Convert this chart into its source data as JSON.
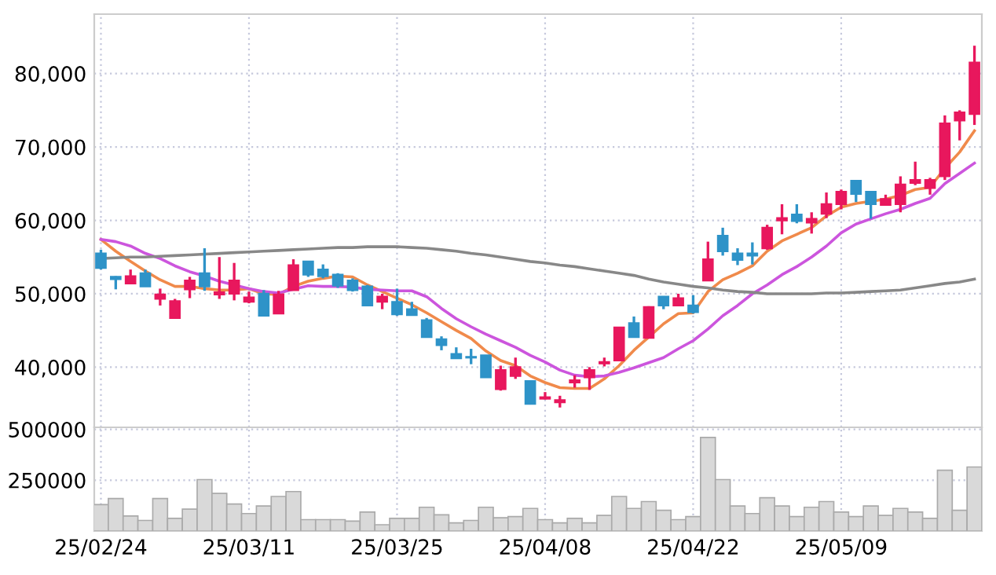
{
  "chart_data": [
    {
      "type": "candlestick",
      "categories": [
        null,
        null,
        null,
        null,
        null,
        null,
        null,
        null,
        null,
        null,
        null,
        null,
        null,
        null,
        null,
        null,
        null,
        null,
        null,
        null,
        null,
        null,
        null,
        null,
        null,
        null,
        null,
        null,
        null,
        null,
        null,
        null,
        null,
        null,
        null,
        null,
        null,
        null,
        null,
        null,
        null,
        null,
        null,
        null,
        null,
        null,
        null,
        null,
        null,
        null,
        null,
        null,
        null,
        null,
        null,
        null,
        null,
        null,
        null,
        null
      ],
      "ohlc": [
        [
          55500,
          56000,
          53300,
          53500
        ],
        [
          52300,
          52400,
          50600,
          52000
        ],
        [
          51400,
          53300,
          51400,
          52400
        ],
        [
          52800,
          53300,
          51000,
          51000
        ],
        [
          49300,
          50700,
          48400,
          49900
        ],
        [
          46700,
          49300,
          46700,
          49000
        ],
        [
          50600,
          52300,
          49400,
          51800
        ],
        [
          52800,
          56200,
          50400,
          51000
        ],
        [
          49900,
          55000,
          49300,
          50200
        ],
        [
          50000,
          54200,
          49100,
          51800
        ],
        [
          48900,
          50300,
          48700,
          49500
        ],
        [
          50000,
          50500,
          47000,
          47000
        ],
        [
          47300,
          50400,
          47300,
          49900
        ],
        [
          50500,
          54700,
          50500,
          53900
        ],
        [
          54400,
          54400,
          52300,
          52600
        ],
        [
          53300,
          54000,
          52100,
          52400
        ],
        [
          52600,
          52800,
          50800,
          51100
        ],
        [
          51800,
          52100,
          50300,
          50500
        ],
        [
          51000,
          51200,
          48400,
          48400
        ],
        [
          48900,
          50000,
          47900,
          49600
        ],
        [
          48900,
          50700,
          47000,
          47200
        ],
        [
          47900,
          48900,
          47100,
          47100
        ],
        [
          46400,
          46700,
          44100,
          44100
        ],
        [
          43800,
          44200,
          42300,
          43000
        ],
        [
          41800,
          42700,
          41200,
          41200
        ],
        [
          41400,
          42500,
          40400,
          41300
        ],
        [
          41600,
          41600,
          38600,
          38600
        ],
        [
          37000,
          40200,
          36800,
          39600
        ],
        [
          38800,
          41300,
          38400,
          40000
        ],
        [
          38100,
          38100,
          34900,
          35000
        ],
        [
          35700,
          36600,
          35600,
          35900
        ],
        [
          35200,
          36100,
          34500,
          35500
        ],
        [
          37900,
          38900,
          37200,
          38200
        ],
        [
          38600,
          40000,
          36900,
          39600
        ],
        [
          40500,
          41300,
          40100,
          40700
        ],
        [
          40900,
          45400,
          40900,
          45400
        ],
        [
          46000,
          46900,
          44100,
          44100
        ],
        [
          44000,
          48300,
          44000,
          48200
        ],
        [
          49600,
          49600,
          47900,
          48400
        ],
        [
          48400,
          50000,
          48400,
          49400
        ],
        [
          48400,
          49800,
          47300,
          47500
        ],
        [
          51800,
          57100,
          51800,
          54700
        ],
        [
          57900,
          59000,
          55200,
          55800
        ],
        [
          55500,
          56200,
          53900,
          54600
        ],
        [
          55500,
          57000,
          54000,
          55200
        ],
        [
          56200,
          59400,
          56000,
          59000
        ],
        [
          60000,
          62200,
          58100,
          60300
        ],
        [
          60800,
          62200,
          59600,
          59900
        ],
        [
          59700,
          61100,
          58200,
          60200
        ],
        [
          60900,
          63800,
          60300,
          62200
        ],
        [
          62200,
          64200,
          61500,
          63900
        ],
        [
          65400,
          65400,
          62500,
          63600
        ],
        [
          63900,
          63900,
          60200,
          62200
        ],
        [
          62100,
          63500,
          62100,
          62900
        ],
        [
          62200,
          66000,
          61100,
          64900
        ],
        [
          65100,
          68000,
          64800,
          65500
        ],
        [
          64400,
          65800,
          63500,
          65500
        ],
        [
          66000,
          74300,
          65500,
          73200
        ],
        [
          73600,
          75000,
          70900,
          74700
        ],
        [
          74500,
          83800,
          73000,
          81500
        ]
      ],
      "colors": [
        "#2e93c8",
        "#2e93c8",
        "#e8175d",
        "#2e93c8",
        "#e8175d",
        "#e8175d",
        "#e8175d",
        "#2e93c8",
        "#e8175d",
        "#e8175d",
        "#e8175d",
        "#2e93c8",
        "#e8175d",
        "#e8175d",
        "#2e93c8",
        "#2e93c8",
        "#2e93c8",
        "#2e93c8",
        "#2e93c8",
        "#e8175d",
        "#2e93c8",
        "#2e93c8",
        "#2e93c8",
        "#2e93c8",
        "#2e93c8",
        "#2e93c8",
        "#2e93c8",
        "#e8175d",
        "#e8175d",
        "#2e93c8",
        "#e8175d",
        "#e8175d",
        "#e8175d",
        "#e8175d",
        "#e8175d",
        "#e8175d",
        "#2e93c8",
        "#e8175d",
        "#2e93c8",
        "#e8175d",
        "#2e93c8",
        "#e8175d",
        "#2e93c8",
        "#2e93c8",
        "#2e93c8",
        "#e8175d",
        "#e8175d",
        "#2e93c8",
        "#e8175d",
        "#e8175d",
        "#e8175d",
        "#2e93c8",
        "#2e93c8",
        "#e8175d",
        "#e8175d",
        "#e8175d",
        "#e8175d",
        "#e8175d",
        "#e8175d",
        "#e8175d"
      ],
      "series": [
        {
          "type": "line",
          "color": "#f08a4b",
          "values": [
            57400,
            55800,
            54400,
            53100,
            51900,
            51000,
            51000,
            50700,
            50500,
            50500,
            50700,
            50000,
            49900,
            51000,
            51700,
            52100,
            52400,
            52300,
            51200,
            50300,
            49400,
            48500,
            47400,
            46200,
            45000,
            43900,
            42200,
            40900,
            40200,
            38800,
            37900,
            37200,
            37100,
            37100,
            38400,
            40200,
            42300,
            44100,
            45900,
            47300,
            47400,
            50300,
            51900,
            52800,
            53800,
            55800,
            57200,
            58100,
            59000,
            60600,
            61800,
            62300,
            62600,
            62900,
            63400,
            64200,
            64500,
            67100,
            69300,
            72200
          ]
        },
        {
          "type": "line",
          "color": "#cc55dd",
          "values": [
            57400,
            57100,
            56500,
            55500,
            54800,
            53800,
            53000,
            52400,
            51700,
            51200,
            50700,
            50300,
            50100,
            50600,
            51100,
            51000,
            51000,
            50900,
            50600,
            50500,
            50400,
            50400,
            49600,
            48000,
            46600,
            45500,
            44500,
            43600,
            42700,
            41600,
            40700,
            39600,
            38900,
            38700,
            38800,
            39300,
            39900,
            40600,
            41300,
            42500,
            43600,
            45200,
            47000,
            48400,
            50000,
            51200,
            52600,
            53700,
            55000,
            56500,
            58300,
            59500,
            60200,
            60900,
            61500,
            62300,
            63000,
            65000,
            66400,
            67800
          ]
        },
        {
          "type": "line",
          "color": "#888888",
          "values": [
            54800,
            54900,
            55000,
            55000,
            55100,
            55200,
            55300,
            55400,
            55500,
            55600,
            55700,
            55800,
            55900,
            56000,
            56100,
            56200,
            56300,
            56300,
            56400,
            56400,
            56400,
            56300,
            56200,
            56000,
            55800,
            55500,
            55300,
            55000,
            54700,
            54400,
            54200,
            53900,
            53700,
            53400,
            53100,
            52800,
            52500,
            52000,
            51600,
            51300,
            51000,
            50800,
            50500,
            50300,
            50200,
            50000,
            50000,
            50000,
            50000,
            50100,
            50100,
            50200,
            50300,
            50400,
            50500,
            50800,
            51100,
            51400,
            51600,
            52000
          ]
        }
      ],
      "ylim": [
        31800,
        88100
      ],
      "yticks": [
        {
          "value": 40000,
          "label": "40,000"
        },
        {
          "value": 50000,
          "label": "50,000"
        },
        {
          "value": 60000,
          "label": "60,000"
        },
        {
          "value": 70000,
          "label": "70,000"
        },
        {
          "value": 80000,
          "label": "80,000"
        }
      ],
      "grid": true,
      "tick_labels": "y"
    },
    {
      "type": "bar",
      "categories": [
        "25/02/24",
        null,
        null,
        null,
        null,
        null,
        null,
        null,
        null,
        null,
        "25/03/11",
        null,
        null,
        null,
        null,
        null,
        null,
        null,
        null,
        null,
        "25/03/25",
        null,
        null,
        null,
        null,
        null,
        null,
        null,
        null,
        null,
        "25/04/08",
        null,
        null,
        null,
        null,
        null,
        null,
        null,
        null,
        null,
        "25/04/22",
        null,
        null,
        null,
        null,
        null,
        null,
        null,
        null,
        null,
        "25/05/09",
        null,
        null,
        null,
        null,
        null,
        null,
        null,
        null,
        null
      ],
      "values": [
        130000,
        160000,
        74000,
        52000,
        160000,
        62000,
        108000,
        253000,
        185000,
        133000,
        86000,
        123000,
        170000,
        194000,
        56000,
        56000,
        56000,
        49000,
        93000,
        31000,
        62000,
        62000,
        117000,
        80000,
        40000,
        52000,
        117000,
        65000,
        71000,
        111000,
        56000,
        40000,
        62000,
        40000,
        77000,
        170000,
        111000,
        145000,
        102000,
        56000,
        71000,
        460000,
        253000,
        123000,
        86000,
        164000,
        123000,
        71000,
        117000,
        145000,
        93000,
        71000,
        123000,
        77000,
        111000,
        93000,
        62000,
        299000,
        102000,
        315000
      ],
      "color": "#d9d9d9",
      "ylim": [
        0,
        510000
      ],
      "yticks": [
        250000,
        500000
      ],
      "grid": true
    }
  ]
}
